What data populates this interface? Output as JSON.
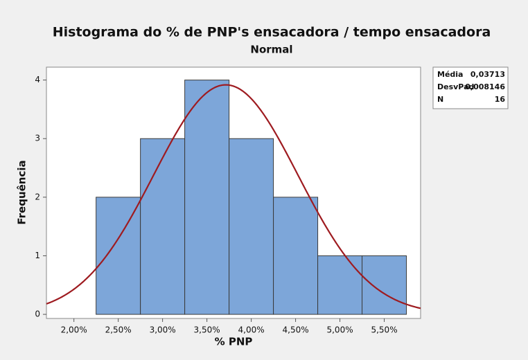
{
  "chart_data": {
    "type": "histogram",
    "title": "Histograma do % de PNP's ensacadora / tempo ensacadora",
    "subtitle": "Normal",
    "x_label": "% PNP",
    "y_label": "Frequência",
    "bins": [
      0.0225,
      0.0275,
      0.0325,
      0.0375,
      0.0425,
      0.0475,
      0.0525,
      0.0575
    ],
    "values": [
      2,
      3,
      4,
      3,
      2,
      1,
      1
    ],
    "color": "#7da6d9",
    "curve_color": "#9e1b20",
    "xlim": [
      0.0169,
      0.0591
    ],
    "ylim": [
      -0.07,
      4.22
    ],
    "xticks": [
      {
        "value": 0.02,
        "label": "2,00%"
      },
      {
        "value": 0.025,
        "label": "2,50%"
      },
      {
        "value": 0.03,
        "label": "3,00%"
      },
      {
        "value": 0.035,
        "label": "3,50%"
      },
      {
        "value": 0.04,
        "label": "4,00%"
      },
      {
        "value": 0.045,
        "label": "4,50%"
      },
      {
        "value": 0.05,
        "label": "5,00%"
      },
      {
        "value": 0.055,
        "label": "5,50%"
      }
    ],
    "yticks": [
      0,
      1,
      2,
      3,
      4
    ],
    "grid": false,
    "stats": [
      {
        "name": "Média",
        "value": 0.03713,
        "value_label": "0,03713"
      },
      {
        "name": "DesvPad",
        "value": 0.008146,
        "value_label": "0,008146"
      },
      {
        "name": "N",
        "value": 16
      }
    ]
  }
}
